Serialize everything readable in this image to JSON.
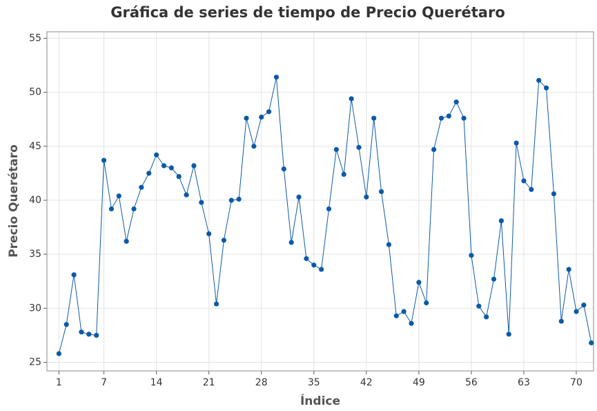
{
  "chart_data": {
    "type": "line",
    "title": "Gráfica de series de tiempo de Precio Querétaro",
    "x_label": "Índice",
    "y_label": "Precio Querétaro",
    "x": [
      1,
      2,
      3,
      4,
      5,
      6,
      7,
      8,
      9,
      10,
      11,
      12,
      13,
      14,
      15,
      16,
      17,
      18,
      19,
      20,
      21,
      22,
      23,
      24,
      25,
      26,
      27,
      28,
      29,
      30,
      31,
      32,
      33,
      34,
      35,
      36,
      37,
      38,
      39,
      40,
      41,
      42,
      43,
      44,
      45,
      46,
      47,
      48,
      49,
      50,
      51,
      52,
      53,
      54,
      55,
      56,
      57,
      58,
      59,
      60,
      61,
      62,
      63,
      64,
      65,
      66,
      67,
      68,
      69,
      70,
      71,
      72
    ],
    "series": [
      {
        "name": "Precio Querétaro",
        "color": "#0b5aa6",
        "values": [
          25.8,
          28.5,
          33.1,
          27.8,
          27.6,
          27.5,
          43.7,
          39.2,
          40.4,
          36.2,
          39.2,
          41.2,
          42.5,
          44.2,
          43.2,
          43.0,
          42.2,
          40.5,
          43.2,
          39.8,
          36.9,
          30.4,
          36.3,
          40.0,
          40.1,
          47.6,
          45.0,
          47.7,
          48.2,
          51.4,
          42.9,
          36.1,
          40.3,
          34.6,
          34.0,
          33.6,
          39.2,
          44.7,
          42.4,
          49.4,
          44.9,
          40.3,
          47.6,
          40.8,
          35.9,
          29.3,
          29.7,
          28.6,
          32.4,
          30.5,
          44.7,
          47.6,
          47.8,
          49.1,
          47.6,
          34.9,
          30.2,
          29.2,
          32.7,
          38.1,
          27.6,
          45.3,
          41.8,
          41.0,
          51.1,
          50.4,
          40.6,
          28.8,
          33.6,
          29.7,
          30.3,
          26.8
        ]
      }
    ],
    "xlim": [
      -0.6,
      72.3
    ],
    "ylim": [
      24.2,
      55.6
    ],
    "xticks": [
      1,
      7,
      14,
      21,
      28,
      35,
      42,
      49,
      56,
      63,
      70
    ],
    "yticks": [
      25,
      30,
      35,
      40,
      45,
      50,
      55
    ],
    "grid": true
  }
}
